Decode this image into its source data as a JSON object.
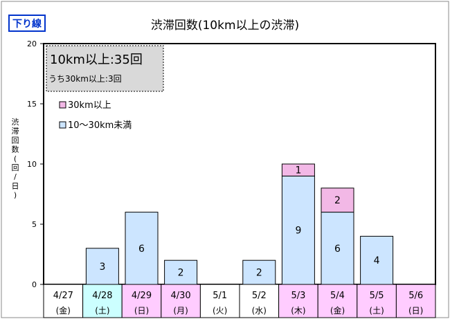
{
  "badge": "下り線",
  "chart_data": {
    "type": "bar",
    "title": "渋滞回数(10km以上の渋滞)",
    "ylabel": "渋滞回数(回/日)",
    "ylim": [
      0,
      20
    ],
    "yticks": [
      0,
      5,
      10,
      15,
      20
    ],
    "grid": false,
    "legend_position": "top-left",
    "categories": [
      "4/27",
      "4/28",
      "4/29",
      "4/30",
      "5/1",
      "5/2",
      "5/3",
      "5/4",
      "5/5",
      "5/6"
    ],
    "weekdays": [
      "(金)",
      "(土)",
      "(日)",
      "(月)",
      "(火)",
      "(水)",
      "(木)",
      "(金)",
      "(土)",
      "(日)"
    ],
    "day_colors": [
      "#ffffff",
      "#ccffff",
      "#ffccff",
      "#ffccff",
      "#ffffff",
      "#ffffff",
      "#ffccff",
      "#ffccff",
      "#ffccff",
      "#ffccff"
    ],
    "series": [
      {
        "name": "10〜30km未満",
        "color": "#cce5ff",
        "values": [
          0,
          3,
          6,
          2,
          0,
          2,
          9,
          6,
          4,
          0
        ]
      },
      {
        "name": "30km以上",
        "color": "#f2b8e6",
        "values": [
          0,
          0,
          0,
          0,
          0,
          0,
          1,
          2,
          0,
          0
        ]
      }
    ],
    "summary": {
      "total": "10km以上:35回",
      "sub": "うち30km以上:3回"
    }
  }
}
